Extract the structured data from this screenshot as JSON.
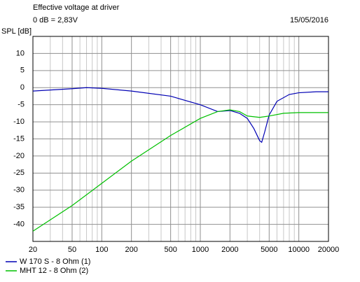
{
  "chart_data": {
    "type": "line",
    "title": "Effective voltage at driver",
    "subtitle": "0 dB = 2,83V",
    "date": "15/05/2016",
    "y_label": "SPL [dB]",
    "x_scale": "log",
    "grid": true,
    "xlim": [
      20,
      20000
    ],
    "xticks": [
      20,
      50,
      100,
      200,
      500,
      1000,
      2000,
      5000,
      10000,
      20000
    ],
    "x_minor_ticks": [
      30,
      40,
      60,
      70,
      80,
      90,
      300,
      400,
      600,
      700,
      800,
      900,
      3000,
      4000,
      6000,
      7000,
      8000,
      9000
    ],
    "ylim": [
      -45,
      15
    ],
    "yticks": [
      -40,
      -35,
      -30,
      -25,
      -20,
      -15,
      -10,
      -5,
      0,
      5,
      10
    ],
    "series": [
      {
        "name": "W 170 S - 8 Ohm (1)",
        "color": "#0000b4",
        "x": [
          20,
          50,
          70,
          100,
          200,
          500,
          1000,
          1500,
          2000,
          2500,
          3000,
          3500,
          4000,
          4200,
          4500,
          5000,
          6000,
          8000,
          10000,
          15000,
          20000
        ],
        "values": [
          -1,
          -0.3,
          0,
          -0.2,
          -1,
          -2.5,
          -5,
          -7,
          -6.7,
          -7.5,
          -9,
          -12,
          -15.5,
          -16,
          -13,
          -8,
          -4,
          -2,
          -1.5,
          -1.2,
          -1.2
        ]
      },
      {
        "name": "MHT 12 - 8 Ohm (2)",
        "color": "#00c000",
        "x": [
          20,
          50,
          100,
          200,
          500,
          1000,
          1500,
          2000,
          2500,
          3000,
          4000,
          5000,
          7000,
          10000,
          20000
        ],
        "values": [
          -42,
          -34.5,
          -28,
          -21.5,
          -14,
          -9,
          -7,
          -6.5,
          -7,
          -8.3,
          -8.7,
          -8.3,
          -7.5,
          -7.3,
          -7.3
        ]
      }
    ]
  }
}
